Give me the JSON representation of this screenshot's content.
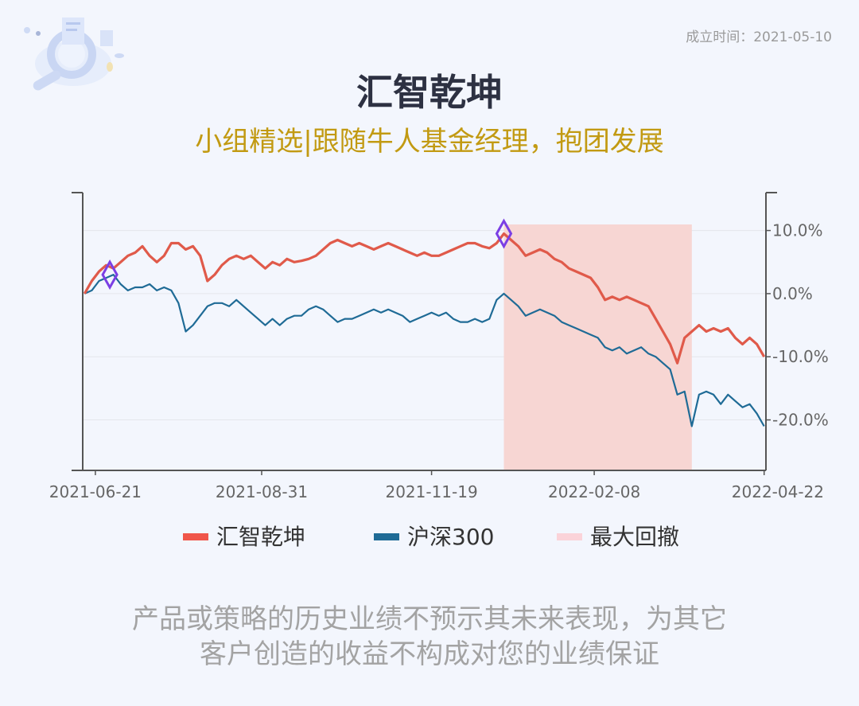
{
  "header": {
    "established_label": "成立时间：2021-05-10",
    "title": "汇智乾坤",
    "subtitle": "小组精选|跟随牛人基金经理，抱团发展"
  },
  "disclaimer": {
    "line1": "产品或策略的历史业绩不预示其未来表现，为其它",
    "line2": "客户创造的收益不构成对您的业绩保证"
  },
  "chart_data": {
    "type": "line",
    "x_tick_labels": [
      "2021-06-21",
      "2021-08-31",
      "2021-11-19",
      "2022-02-08",
      "2022-04-22"
    ],
    "y_tick_labels": [
      "10.0%",
      "0.0%",
      "-10.0%",
      "-20.0%"
    ],
    "y_ticks": [
      10,
      0,
      -10,
      -20
    ],
    "ylim": [
      -28,
      16
    ],
    "y_axis_side": "right",
    "grid": true,
    "legend_position": "bottom",
    "series": [
      {
        "name": "汇智乾坤",
        "color": "#e05a4a",
        "points": [
          [
            0,
            0
          ],
          [
            4,
            2
          ],
          [
            8,
            3.5
          ],
          [
            12,
            4.5
          ],
          [
            16,
            4
          ],
          [
            20,
            5
          ],
          [
            24,
            6
          ],
          [
            28,
            6.5
          ],
          [
            32,
            7.5
          ],
          [
            36,
            6
          ],
          [
            40,
            5
          ],
          [
            44,
            6
          ],
          [
            48,
            8
          ],
          [
            52,
            8
          ],
          [
            56,
            7
          ],
          [
            60,
            7.5
          ],
          [
            64,
            6
          ],
          [
            68,
            2
          ],
          [
            72,
            3
          ],
          [
            76,
            4.5
          ],
          [
            80,
            5.5
          ],
          [
            84,
            6
          ],
          [
            88,
            5.5
          ],
          [
            92,
            6
          ],
          [
            96,
            5
          ],
          [
            100,
            4
          ],
          [
            104,
            5
          ],
          [
            108,
            4.5
          ],
          [
            112,
            5.5
          ],
          [
            116,
            5
          ],
          [
            120,
            5.2
          ],
          [
            124,
            5.5
          ],
          [
            128,
            6
          ],
          [
            132,
            7
          ],
          [
            136,
            8
          ],
          [
            140,
            8.5
          ],
          [
            144,
            8
          ],
          [
            148,
            7.5
          ],
          [
            152,
            8
          ],
          [
            156,
            7.5
          ],
          [
            160,
            7
          ],
          [
            164,
            7.5
          ],
          [
            168,
            8
          ],
          [
            172,
            7.5
          ],
          [
            176,
            7
          ],
          [
            180,
            6.5
          ],
          [
            184,
            6
          ],
          [
            188,
            6.5
          ],
          [
            192,
            6
          ],
          [
            196,
            6
          ],
          [
            200,
            6.5
          ],
          [
            204,
            7
          ],
          [
            208,
            7.5
          ],
          [
            212,
            8
          ],
          [
            216,
            8
          ],
          [
            220,
            7.5
          ],
          [
            224,
            7.2
          ],
          [
            228,
            8
          ],
          [
            232,
            9.5
          ],
          [
            236,
            8.5
          ],
          [
            240,
            7.5
          ],
          [
            244,
            6
          ],
          [
            248,
            6.5
          ],
          [
            252,
            7
          ],
          [
            256,
            6.5
          ],
          [
            260,
            5.5
          ],
          [
            264,
            5
          ],
          [
            268,
            4
          ],
          [
            272,
            3.5
          ],
          [
            276,
            3
          ],
          [
            280,
            2.5
          ],
          [
            284,
            1
          ],
          [
            288,
            -1
          ],
          [
            292,
            -0.5
          ],
          [
            296,
            -1
          ],
          [
            300,
            -0.5
          ],
          [
            304,
            -1
          ],
          [
            308,
            -1.5
          ],
          [
            312,
            -2
          ],
          [
            316,
            -4
          ],
          [
            320,
            -6
          ],
          [
            324,
            -8
          ],
          [
            328,
            -11
          ],
          [
            332,
            -7
          ],
          [
            336,
            -6
          ],
          [
            340,
            -5
          ],
          [
            344,
            -6
          ],
          [
            348,
            -5.5
          ],
          [
            352,
            -6
          ],
          [
            356,
            -5.5
          ],
          [
            360,
            -7
          ],
          [
            364,
            -8
          ],
          [
            368,
            -7
          ],
          [
            372,
            -8
          ],
          [
            376,
            -10
          ]
        ]
      },
      {
        "name": "沪深300",
        "color": "#1f6b96",
        "points": [
          [
            0,
            0
          ],
          [
            4,
            0.5
          ],
          [
            8,
            2
          ],
          [
            12,
            2.5
          ],
          [
            16,
            3
          ],
          [
            20,
            1.5
          ],
          [
            24,
            0.5
          ],
          [
            28,
            1
          ],
          [
            32,
            1
          ],
          [
            36,
            1.5
          ],
          [
            40,
            0.5
          ],
          [
            44,
            1
          ],
          [
            48,
            0.5
          ],
          [
            52,
            -1.5
          ],
          [
            56,
            -6
          ],
          [
            60,
            -5
          ],
          [
            64,
            -3.5
          ],
          [
            68,
            -2
          ],
          [
            72,
            -1.5
          ],
          [
            76,
            -1.5
          ],
          [
            80,
            -2
          ],
          [
            84,
            -1
          ],
          [
            88,
            -2
          ],
          [
            92,
            -3
          ],
          [
            96,
            -4
          ],
          [
            100,
            -5
          ],
          [
            104,
            -4
          ],
          [
            108,
            -5
          ],
          [
            112,
            -4
          ],
          [
            116,
            -3.5
          ],
          [
            120,
            -3.5
          ],
          [
            124,
            -2.5
          ],
          [
            128,
            -2
          ],
          [
            132,
            -2.5
          ],
          [
            136,
            -3.5
          ],
          [
            140,
            -4.5
          ],
          [
            144,
            -4
          ],
          [
            148,
            -4
          ],
          [
            152,
            -3.5
          ],
          [
            156,
            -3
          ],
          [
            160,
            -2.5
          ],
          [
            164,
            -3
          ],
          [
            168,
            -2.5
          ],
          [
            172,
            -3
          ],
          [
            176,
            -3.5
          ],
          [
            180,
            -4.5
          ],
          [
            184,
            -4
          ],
          [
            188,
            -3.5
          ],
          [
            192,
            -3
          ],
          [
            196,
            -3.5
          ],
          [
            200,
            -3
          ],
          [
            204,
            -4
          ],
          [
            208,
            -4.5
          ],
          [
            212,
            -4.5
          ],
          [
            216,
            -4
          ],
          [
            220,
            -4.5
          ],
          [
            224,
            -4
          ],
          [
            228,
            -1
          ],
          [
            232,
            0
          ],
          [
            236,
            -1
          ],
          [
            240,
            -2
          ],
          [
            244,
            -3.5
          ],
          [
            248,
            -3
          ],
          [
            252,
            -2.5
          ],
          [
            256,
            -3
          ],
          [
            260,
            -3.5
          ],
          [
            264,
            -4.5
          ],
          [
            268,
            -5
          ],
          [
            272,
            -5.5
          ],
          [
            276,
            -6
          ],
          [
            280,
            -6.5
          ],
          [
            284,
            -7
          ],
          [
            288,
            -8.5
          ],
          [
            292,
            -9
          ],
          [
            296,
            -8.5
          ],
          [
            300,
            -9.5
          ],
          [
            304,
            -9
          ],
          [
            308,
            -8.5
          ],
          [
            312,
            -9.5
          ],
          [
            316,
            -10
          ],
          [
            320,
            -11
          ],
          [
            324,
            -12
          ],
          [
            328,
            -16
          ],
          [
            332,
            -15.5
          ],
          [
            336,
            -21
          ],
          [
            340,
            -16
          ],
          [
            344,
            -15.5
          ],
          [
            348,
            -16
          ],
          [
            352,
            -17.5
          ],
          [
            356,
            -16
          ],
          [
            360,
            -17
          ],
          [
            364,
            -18
          ],
          [
            368,
            -17.5
          ],
          [
            372,
            -19
          ],
          [
            376,
            -21
          ]
        ]
      }
    ],
    "max_drawdown": {
      "name": "最大回撤",
      "start_x": 232,
      "end_x": 336,
      "color": "#f7d6d3"
    },
    "markers": [
      {
        "x": 14,
        "y": 3
      },
      {
        "x": 232,
        "y": 9.5
      }
    ],
    "marker_color": "#7b3fe4",
    "x_tick_positions": [
      6,
      98,
      192,
      282,
      376
    ],
    "x_range": [
      -1,
      377
    ]
  }
}
